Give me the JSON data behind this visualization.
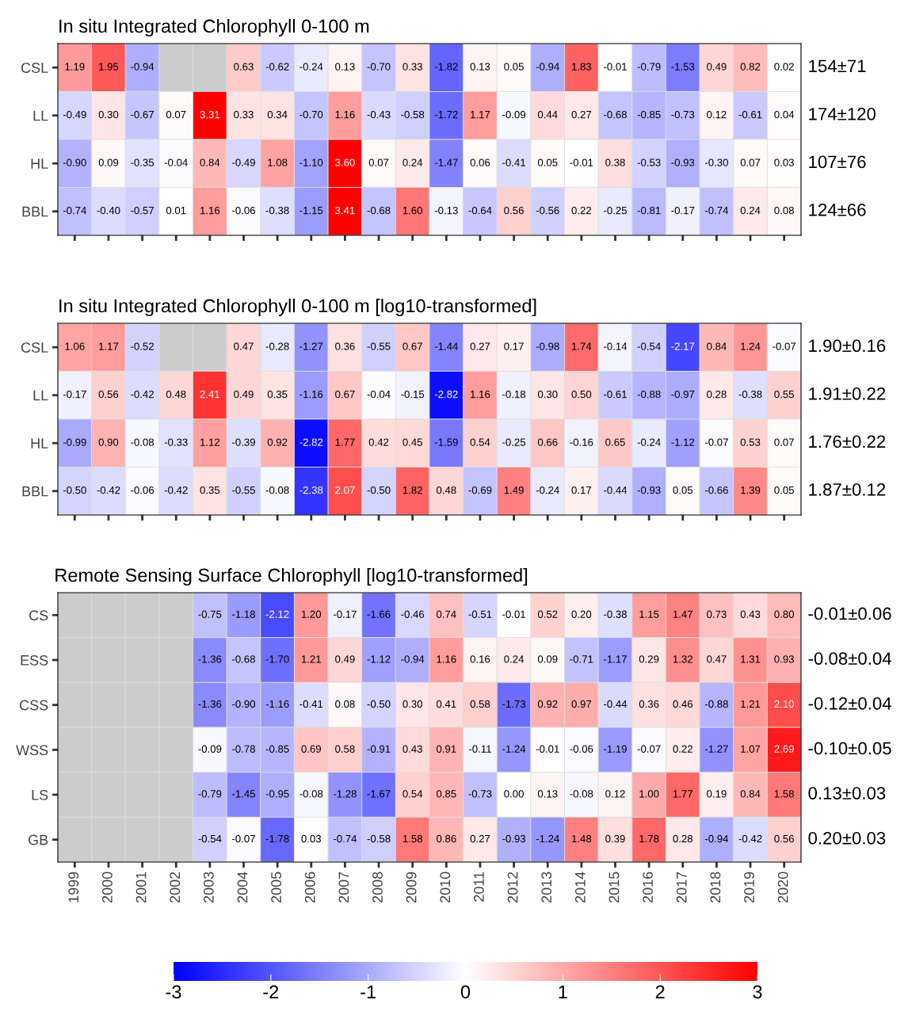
{
  "chart_data": [
    {
      "type": "heatmap",
      "title": "In situ Integrated Chlorophyll 0-100 m",
      "categories": [
        "1999",
        "2000",
        "2001",
        "2002",
        "2003",
        "2004",
        "2005",
        "2006",
        "2007",
        "2008",
        "2009",
        "2010",
        "2011",
        "2012",
        "2013",
        "2014",
        "2015",
        "2016",
        "2017",
        "2018",
        "2019",
        "2020"
      ],
      "y_categories": [
        "CSL",
        "LL",
        "HL",
        "BBL"
      ],
      "y2_categories": [
        "154±71",
        "174±120",
        "107±76",
        "124±66"
      ],
      "tick_labels": "y",
      "cells": [
        [
          1.19,
          1.95,
          -0.94,
          null,
          null,
          0.63,
          -0.62,
          -0.24,
          0.13,
          -0.7,
          0.33,
          -1.82,
          0.13,
          0.05,
          -0.94,
          1.83,
          -0.01,
          -0.79,
          -1.53,
          0.49,
          0.82,
          0.02
        ],
        [
          -0.49,
          0.3,
          -0.67,
          0.07,
          3.31,
          0.33,
          0.34,
          -0.7,
          1.16,
          -0.43,
          -0.58,
          -1.72,
          1.17,
          -0.09,
          0.44,
          0.27,
          -0.68,
          -0.85,
          -0.73,
          0.12,
          -0.61,
          0.04
        ],
        [
          -0.9,
          0.09,
          -0.35,
          -0.04,
          0.84,
          -0.49,
          1.08,
          -1.1,
          3.6,
          0.07,
          0.24,
          -1.47,
          0.06,
          -0.41,
          0.05,
          -0.01,
          0.38,
          -0.53,
          -0.93,
          -0.3,
          0.07,
          0.03
        ],
        [
          -0.74,
          -0.4,
          -0.57,
          0.01,
          1.16,
          -0.06,
          -0.38,
          -1.15,
          3.41,
          -0.68,
          1.6,
          -0.13,
          -0.64,
          0.56,
          -0.56,
          0.22,
          -0.25,
          -0.81,
          -0.17,
          -0.74,
          0.24,
          0.08
        ]
      ],
      "cell_labels": [
        [
          "1.19",
          "1.95",
          "-0.94",
          null,
          null,
          "0.63",
          "-0.62",
          "-0.24",
          "0.13",
          "-0.70",
          "0.33",
          "-1.82",
          "0.13",
          "0.05",
          "-0.94",
          "1.83",
          "-0.01",
          "-0.79",
          "-1.53",
          "0.49",
          "0.82",
          "0.02"
        ],
        [
          "-0.49",
          "0.30",
          "-0.67",
          "0.07",
          "3.31",
          "0.33",
          "0.34",
          "-0.70",
          "1.16",
          "-0.43",
          "-0.58",
          "-1.72",
          "1.17",
          "-0.09",
          "0.44",
          "0.27",
          "-0.68",
          "-0.85",
          "-0.73",
          "0.12",
          "-0.61",
          "0.04"
        ],
        [
          "-0.90",
          "0.09",
          "-0.35",
          "-0.04",
          "0.84",
          "-0.49",
          "1.08",
          "-1.10",
          "3.60",
          "0.07",
          "0.24",
          "-1.47",
          "0.06",
          "-0.41",
          "0.05",
          "-0.01",
          "0.38",
          "-0.53",
          "-0.93",
          "-0.30",
          "0.07",
          "0.03"
        ],
        [
          "-0.74",
          "-0.40",
          "-0.57",
          "0.01",
          "1.16",
          "-0.06",
          "-0.38",
          "-1.15",
          "3.41",
          "-0.68",
          "1.60",
          "-0.13",
          "-0.64",
          "0.56",
          "-0.56",
          "0.22",
          "-0.25",
          "-0.81",
          "-0.17",
          "-0.74",
          "0.24",
          "0.08"
        ]
      ]
    },
    {
      "type": "heatmap",
      "title": "In situ Integrated Chlorophyll 0-100 m [log10-transformed]",
      "categories": [
        "1999",
        "2000",
        "2001",
        "2002",
        "2003",
        "2004",
        "2005",
        "2006",
        "2007",
        "2008",
        "2009",
        "2010",
        "2011",
        "2012",
        "2013",
        "2014",
        "2015",
        "2016",
        "2017",
        "2018",
        "2019",
        "2020"
      ],
      "y_categories": [
        "CSL",
        "LL",
        "HL",
        "BBL"
      ],
      "y2_categories": [
        "1.90±0.16",
        "1.91±0.22",
        "1.76±0.22",
        "1.87±0.12"
      ],
      "tick_labels": "y",
      "cells": [
        [
          1.06,
          1.17,
          -0.52,
          null,
          null,
          0.47,
          -0.28,
          -1.27,
          0.36,
          -0.55,
          0.67,
          -1.44,
          0.27,
          0.17,
          -0.98,
          1.74,
          -0.14,
          -0.54,
          -2.17,
          0.84,
          1.24,
          -0.07
        ],
        [
          -0.17,
          0.56,
          -0.42,
          0.48,
          2.41,
          0.49,
          0.35,
          -1.16,
          0.67,
          -0.04,
          -0.15,
          -2.82,
          1.16,
          -0.18,
          0.3,
          0.5,
          -0.61,
          -0.88,
          -0.97,
          0.28,
          -0.38,
          0.55
        ],
        [
          -0.99,
          0.9,
          -0.08,
          -0.33,
          1.12,
          -0.39,
          0.92,
          -2.82,
          1.77,
          0.42,
          0.45,
          -1.59,
          0.54,
          -0.25,
          0.66,
          -0.16,
          0.65,
          -0.24,
          -1.12,
          -0.07,
          0.53,
          0.07
        ],
        [
          -0.5,
          -0.42,
          -0.06,
          -0.42,
          0.35,
          -0.55,
          -0.08,
          -2.38,
          2.07,
          -0.5,
          1.82,
          0.48,
          -0.69,
          1.49,
          -0.24,
          0.17,
          -0.44,
          -0.93,
          0.05,
          -0.66,
          1.39,
          0.05
        ]
      ],
      "cell_labels": [
        [
          "1.06",
          "1.17",
          "-0.52",
          null,
          null,
          "0.47",
          "-0.28",
          "-1.27",
          "0.36",
          "-0.55",
          "0.67",
          "-1.44",
          "0.27",
          "0.17",
          "-0.98",
          "1.74",
          "-0.14",
          "-0.54",
          "-2.17",
          "0.84",
          "1.24",
          "-0.07"
        ],
        [
          "-0.17",
          "0.56",
          "-0.42",
          "0.48",
          "2.41",
          "0.49",
          "0.35",
          "-1.16",
          "0.67",
          "-0.04",
          "-0.15",
          "-2.82",
          "1.16",
          "-0.18",
          "0.30",
          "0.50",
          "-0.61",
          "-0.88",
          "-0.97",
          "0.28",
          "-0.38",
          "0.55"
        ],
        [
          "-0.99",
          "0.90",
          "-0.08",
          "-0.33",
          "1.12",
          "-0.39",
          "0.92",
          "-2.82",
          "1.77",
          "0.42",
          "0.45",
          "-1.59",
          "0.54",
          "-0.25",
          "0.66",
          "-0.16",
          "0.65",
          "-0.24",
          "-1.12",
          "-0.07",
          "0.53",
          "0.07"
        ],
        [
          "-0.50",
          "-0.42",
          "-0.06",
          "-0.42",
          "0.35",
          "-0.55",
          "-0.08",
          "-2.38",
          "2.07",
          "-0.50",
          "1.82",
          "0.48",
          "-0.69",
          "1.49",
          "-0.24",
          "0.17",
          "-0.44",
          "-0.93",
          "0.05",
          "-0.66",
          "1.39",
          "0.05"
        ]
      ]
    },
    {
      "type": "heatmap",
      "title": "Remote Sensing Surface Chlorophyll [log10-transformed]",
      "categories": [
        "1999",
        "2000",
        "2001",
        "2002",
        "2003",
        "2004",
        "2005",
        "2006",
        "2007",
        "2008",
        "2009",
        "2010",
        "2011",
        "2012",
        "2013",
        "2014",
        "2015",
        "2016",
        "2017",
        "2018",
        "2019",
        "2020"
      ],
      "y_categories": [
        "CS",
        "ESS",
        "CSS",
        "WSS",
        "LS",
        "GB"
      ],
      "y2_categories": [
        "-0.01±0.06",
        "-0.08±0.04",
        "-0.12±0.04",
        "-0.10±0.05",
        "0.13±0.03",
        "0.20±0.03"
      ],
      "clim": [
        -3,
        3
      ],
      "cticks": [
        -3,
        -2,
        -1,
        0,
        1,
        2,
        3
      ],
      "cells": [
        [
          null,
          null,
          null,
          null,
          -0.75,
          -1.18,
          -2.12,
          1.2,
          -0.17,
          -1.66,
          -0.46,
          0.74,
          -0.51,
          -0.01,
          0.52,
          0.2,
          -0.38,
          1.15,
          1.47,
          0.73,
          0.43,
          0.8
        ],
        [
          null,
          null,
          null,
          null,
          -1.36,
          -0.68,
          -1.7,
          1.21,
          0.49,
          -1.12,
          -0.94,
          1.16,
          0.16,
          0.24,
          0.09,
          -0.71,
          -1.17,
          0.29,
          1.32,
          0.47,
          1.31,
          0.93
        ],
        [
          null,
          null,
          null,
          null,
          -1.36,
          -0.9,
          -1.16,
          -0.41,
          0.08,
          -0.5,
          0.3,
          0.41,
          0.58,
          -1.73,
          0.92,
          0.97,
          -0.44,
          0.36,
          0.46,
          -0.88,
          1.21,
          2.1
        ],
        [
          null,
          null,
          null,
          null,
          -0.09,
          -0.78,
          -0.85,
          0.69,
          0.58,
          -0.91,
          0.43,
          0.91,
          -0.11,
          -1.24,
          -0.01,
          -0.06,
          -1.19,
          -0.07,
          0.22,
          -1.27,
          1.07,
          2.69
        ],
        [
          null,
          null,
          null,
          null,
          -0.79,
          -1.45,
          -0.95,
          -0.08,
          -1.28,
          -1.67,
          0.54,
          0.85,
          -0.73,
          0.0,
          0.13,
          -0.08,
          0.12,
          1.0,
          1.77,
          0.19,
          0.84,
          1.58
        ],
        [
          null,
          null,
          null,
          null,
          -0.54,
          -0.07,
          -1.78,
          0.03,
          -0.74,
          -0.58,
          1.58,
          0.86,
          0.27,
          -0.93,
          -1.24,
          1.48,
          0.39,
          1.78,
          0.28,
          -0.94,
          -0.42,
          0.56
        ]
      ],
      "cell_labels": [
        [
          null,
          null,
          null,
          null,
          "-0.75",
          "-1.18",
          "-2.12",
          "1.20",
          "-0.17",
          "-1.66",
          "-0.46",
          "0.74",
          "-0.51",
          "-0.01",
          "0.52",
          "0.20",
          "-0.38",
          "1.15",
          "1.47",
          "0.73",
          "0.43",
          "0.80"
        ],
        [
          null,
          null,
          null,
          null,
          "-1.36",
          "-0.68",
          "-1.70",
          "1.21",
          "0.49",
          "-1.12",
          "-0.94",
          "1.16",
          "0.16",
          "0.24",
          "0.09",
          "-0.71",
          "-1.17",
          "0.29",
          "1.32",
          "0.47",
          "1.31",
          "0.93"
        ],
        [
          null,
          null,
          null,
          null,
          "-1.36",
          "-0.90",
          "-1.16",
          "-0.41",
          "0.08",
          "-0.50",
          "0.30",
          "0.41",
          "0.58",
          "-1.73",
          "0.92",
          "0.97",
          "-0.44",
          "0.36",
          "0.46",
          "-0.88",
          "1.21",
          "2.10"
        ],
        [
          null,
          null,
          null,
          null,
          "-0.09",
          "-0.78",
          "-0.85",
          "0.69",
          "0.58",
          "-0.91",
          "0.43",
          "0.91",
          "-0.11",
          "-1.24",
          "-0.01",
          "-0.06",
          "-1.19",
          "-0.07",
          "0.22",
          "-1.27",
          "1.07",
          "2.69"
        ],
        [
          null,
          null,
          null,
          null,
          "-0.79",
          "-1.45",
          "-0.95",
          "-0.08",
          "-1.28",
          "-1.67",
          "0.54",
          "0.85",
          "-0.73",
          "0.00",
          "0.13",
          "-0.08",
          "0.12",
          "1.00",
          "1.77",
          "0.19",
          "0.84",
          "1.58"
        ],
        [
          null,
          null,
          null,
          null,
          "-0.54",
          "-0.07",
          "-1.78",
          "0.03",
          "-0.74",
          "-0.58",
          "1.58",
          "0.86",
          "0.27",
          "-0.93",
          "-1.24",
          "1.48",
          "0.39",
          "1.78",
          "0.28",
          "-0.94",
          "-0.42",
          "0.56"
        ]
      ]
    }
  ]
}
